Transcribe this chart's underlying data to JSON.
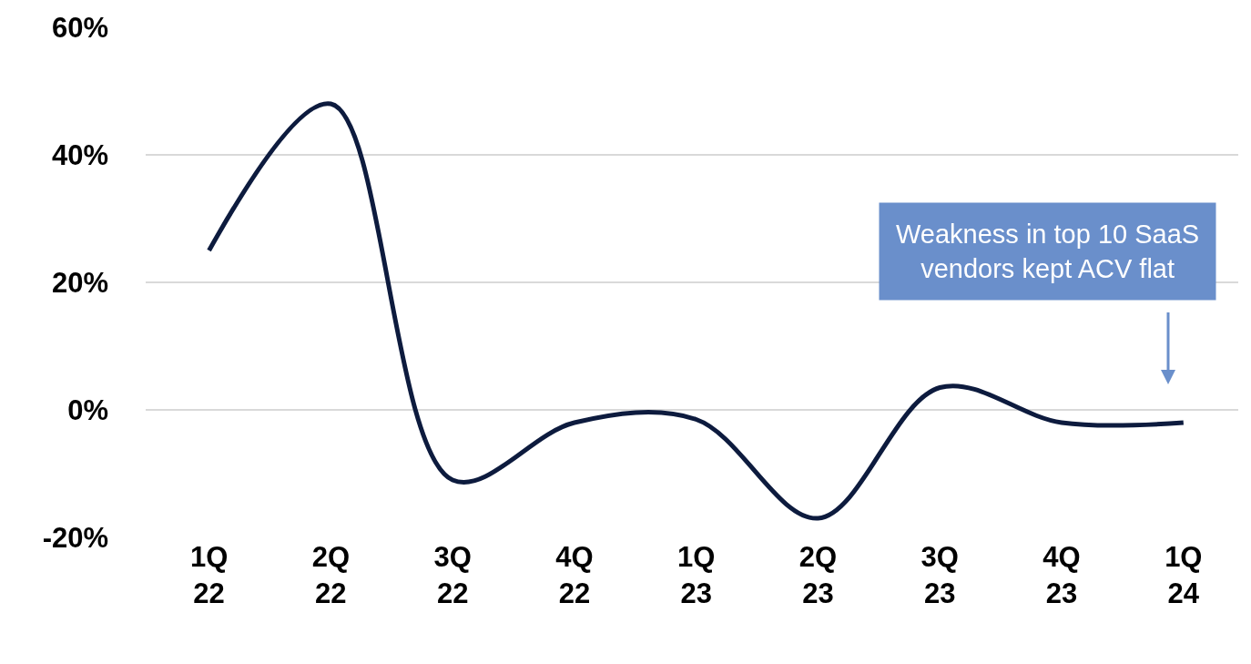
{
  "chart_data": {
    "type": "line",
    "categories": [
      "1Q\n22",
      "2Q\n22",
      "3Q\n22",
      "4Q\n22",
      "1Q\n23",
      "2Q\n23",
      "3Q\n23",
      "4Q\n23",
      "1Q\n24"
    ],
    "series": [
      {
        "color": "#0d1b3e",
        "values": [
          25,
          48,
          -11,
          -2,
          -1.5,
          -17,
          3.5,
          -2,
          -2
        ]
      }
    ],
    "ylim": [
      -20,
      60
    ],
    "yticks": [
      {
        "value": -20,
        "label": "-20%"
      },
      {
        "value": 0,
        "label": "0%"
      },
      {
        "value": 20,
        "label": "20%"
      },
      {
        "value": 40,
        "label": "40%"
      },
      {
        "value": 60,
        "label": "60%"
      }
    ],
    "grid": "y",
    "marker": "none",
    "line_style": "solid",
    "annotations": [
      "Weakness in top 10 SaaS\nvendors kept ACV flat"
    ]
  }
}
